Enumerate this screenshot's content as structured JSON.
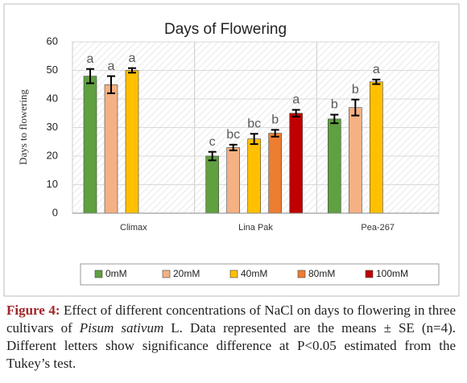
{
  "chart_data": {
    "type": "bar",
    "title": "Days of Flowering",
    "y_label": "Days to flowering",
    "categories": [
      "Climax",
      "Lina Pak",
      "Pea-267"
    ],
    "series": [
      {
        "name": "0mM",
        "color": "#5fa040",
        "values": [
          48,
          20,
          33
        ],
        "errors": [
          2.5,
          1.5,
          1.5
        ],
        "letters": [
          "a",
          "c",
          "b"
        ]
      },
      {
        "name": "20mM",
        "color": "#f4b183",
        "values": [
          45,
          23,
          37
        ],
        "errors": [
          3,
          1,
          2.8
        ],
        "letters": [
          "a",
          "bc",
          "b"
        ]
      },
      {
        "name": "40mM",
        "color": "#ffc000",
        "values": [
          50,
          26,
          46
        ],
        "errors": [
          0.8,
          1.8,
          0.8
        ],
        "letters": [
          "a",
          "bc",
          "a"
        ]
      },
      {
        "name": "80mM",
        "color": "#ed7d31",
        "values": [
          null,
          28,
          null
        ],
        "errors": [
          null,
          1.2,
          null
        ],
        "letters": [
          null,
          "b",
          null
        ]
      },
      {
        "name": "100mM",
        "color": "#c00000",
        "values": [
          null,
          35,
          null
        ],
        "errors": [
          null,
          1.2,
          null
        ],
        "letters": [
          null,
          "a",
          null
        ]
      }
    ],
    "ylim": [
      0,
      60
    ],
    "yticks": [
      0,
      10,
      20,
      30,
      40,
      50,
      60
    ],
    "grid": true,
    "legend": "bottom"
  },
  "caption": {
    "label": "Figure 4:",
    "text_1": "Effect of different concentrations of NaCl on days to flowering in three cultivars of",
    "species": "Pisum sativum",
    "text_2": "L. Data represented are the means ± SE (n=4). Different letters show significance difference at P<0.05 estimated from the Tukey’s test."
  }
}
